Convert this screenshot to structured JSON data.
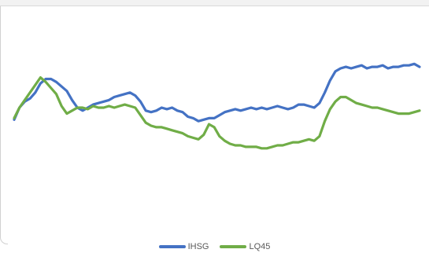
{
  "chart_data": {
    "type": "line",
    "title": "",
    "xlabel": "",
    "ylabel": "",
    "ylim": [
      0,
      100
    ],
    "grid": false,
    "legend_position": "bottom",
    "series": [
      {
        "name": "IHSG",
        "color": "#4472c4",
        "values": [
          54,
          62,
          66,
          68,
          72,
          78,
          81,
          81,
          79,
          76,
          73,
          67,
          62,
          60,
          62,
          64,
          65,
          66,
          67,
          69,
          70,
          71,
          72,
          70,
          66,
          60,
          59,
          60,
          62,
          61,
          62,
          60,
          59,
          56,
          55,
          53,
          54,
          55,
          55,
          57,
          59,
          60,
          61,
          60,
          61,
          62,
          61,
          62,
          61,
          62,
          63,
          62,
          61,
          62,
          64,
          64,
          63,
          62,
          65,
          72,
          80,
          86,
          88,
          89,
          88,
          89,
          90,
          88,
          89,
          89,
          90,
          88,
          89,
          89,
          90,
          90,
          91,
          89
        ]
      },
      {
        "name": "LQ45",
        "color": "#70ad47",
        "values": [
          55,
          62,
          67,
          72,
          77,
          82,
          79,
          75,
          71,
          63,
          58,
          60,
          62,
          62,
          61,
          63,
          62,
          62,
          63,
          62,
          63,
          64,
          63,
          62,
          57,
          52,
          50,
          49,
          49,
          48,
          47,
          46,
          45,
          43,
          42,
          41,
          44,
          51,
          49,
          43,
          40,
          38,
          37,
          37,
          36,
          36,
          36,
          35,
          35,
          36,
          37,
          37,
          38,
          39,
          39,
          40,
          41,
          40,
          43,
          53,
          61,
          66,
          69,
          69,
          67,
          65,
          64,
          63,
          62,
          62,
          61,
          60,
          59,
          58,
          58,
          58,
          59,
          60
        ]
      }
    ]
  }
}
